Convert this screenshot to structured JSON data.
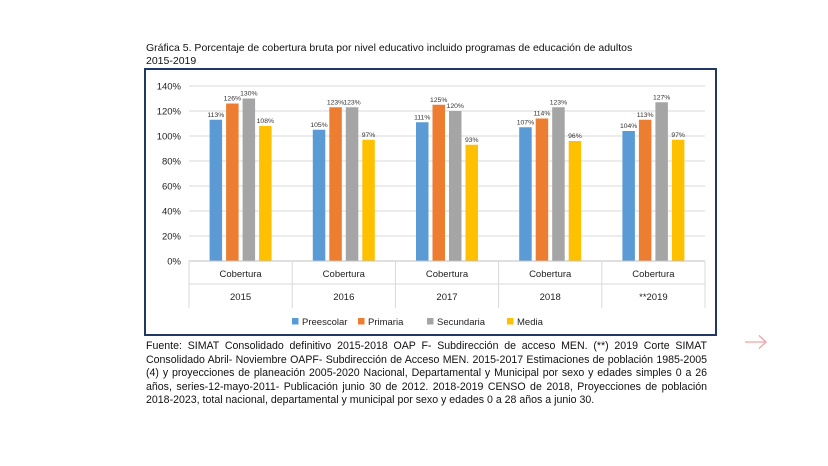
{
  "figure": {
    "title_line1": "Gráfica 5. Porcentaje de cobertura bruta por nivel educativo incluido programas de educación de adultos",
    "title_line2": "2015-2019"
  },
  "source_note": "Fuente: SIMAT Consolidado definitivo 2015-2018 OAP F- Subdirección de acceso MEN. (**) 2019 Corte SIMAT Consolidado Abril- Noviembre OAPF- Subdirección de Acceso MEN. 2015-2017 Estimaciones de población 1985-2005 (4) y proyecciones de planeación 2005-2020 Nacional, Departamental y Municipal por sexo y edades simples 0 a 26 años, series-12-mayo-2011- Publicación junio 30 de 2012. 2018-2019 CENSO de 2018, Proyecciones de población 2018-2023, total nacional, departamental y municipal por sexo y edades 0 a 28 años a junio 30.",
  "nav": {
    "next_icon": "arrow-right-icon",
    "arrow_color": "#f4a0a6"
  },
  "chart_data": {
    "type": "bar",
    "title": "Gráfica 5. Porcentaje de cobertura bruta por nivel educativo incluido programas de educación de adultos 2015-2019",
    "categories": [
      "Cobertura",
      "Cobertura",
      "Cobertura",
      "Cobertura",
      "Cobertura"
    ],
    "years": [
      "2015",
      "2016",
      "2017",
      "2018",
      "**2019"
    ],
    "series": [
      {
        "name": "Preescolar",
        "color": "#5b9bd5",
        "values": [
          113,
          105,
          111,
          107,
          104
        ],
        "labels": [
          "113%",
          "105%",
          "111%",
          "107%",
          "104%"
        ]
      },
      {
        "name": "Primaria",
        "color": "#ed7d31",
        "values": [
          126,
          123,
          125,
          114,
          113
        ],
        "labels": [
          "126%",
          "123%",
          "125%",
          "114%",
          "113%"
        ]
      },
      {
        "name": "Secundaria",
        "color": "#a5a5a5",
        "values": [
          130,
          123,
          120,
          123,
          127
        ],
        "labels": [
          "130%",
          "123%",
          "120%",
          "123%",
          "127%"
        ]
      },
      {
        "name": "Media",
        "color": "#ffc000",
        "values": [
          108,
          97,
          93,
          96,
          97
        ],
        "labels": [
          "108%",
          "97%",
          "93%",
          "96%",
          "97%"
        ]
      }
    ],
    "ylim": [
      0,
      140
    ],
    "yticks": [
      0,
      20,
      40,
      60,
      80,
      100,
      120,
      140
    ],
    "ytick_labels": [
      "0%",
      "20%",
      "40%",
      "60%",
      "80%",
      "100%",
      "120%",
      "140%"
    ],
    "xlabel": "",
    "ylabel": "",
    "grid": true,
    "legend_position": "bottom"
  }
}
